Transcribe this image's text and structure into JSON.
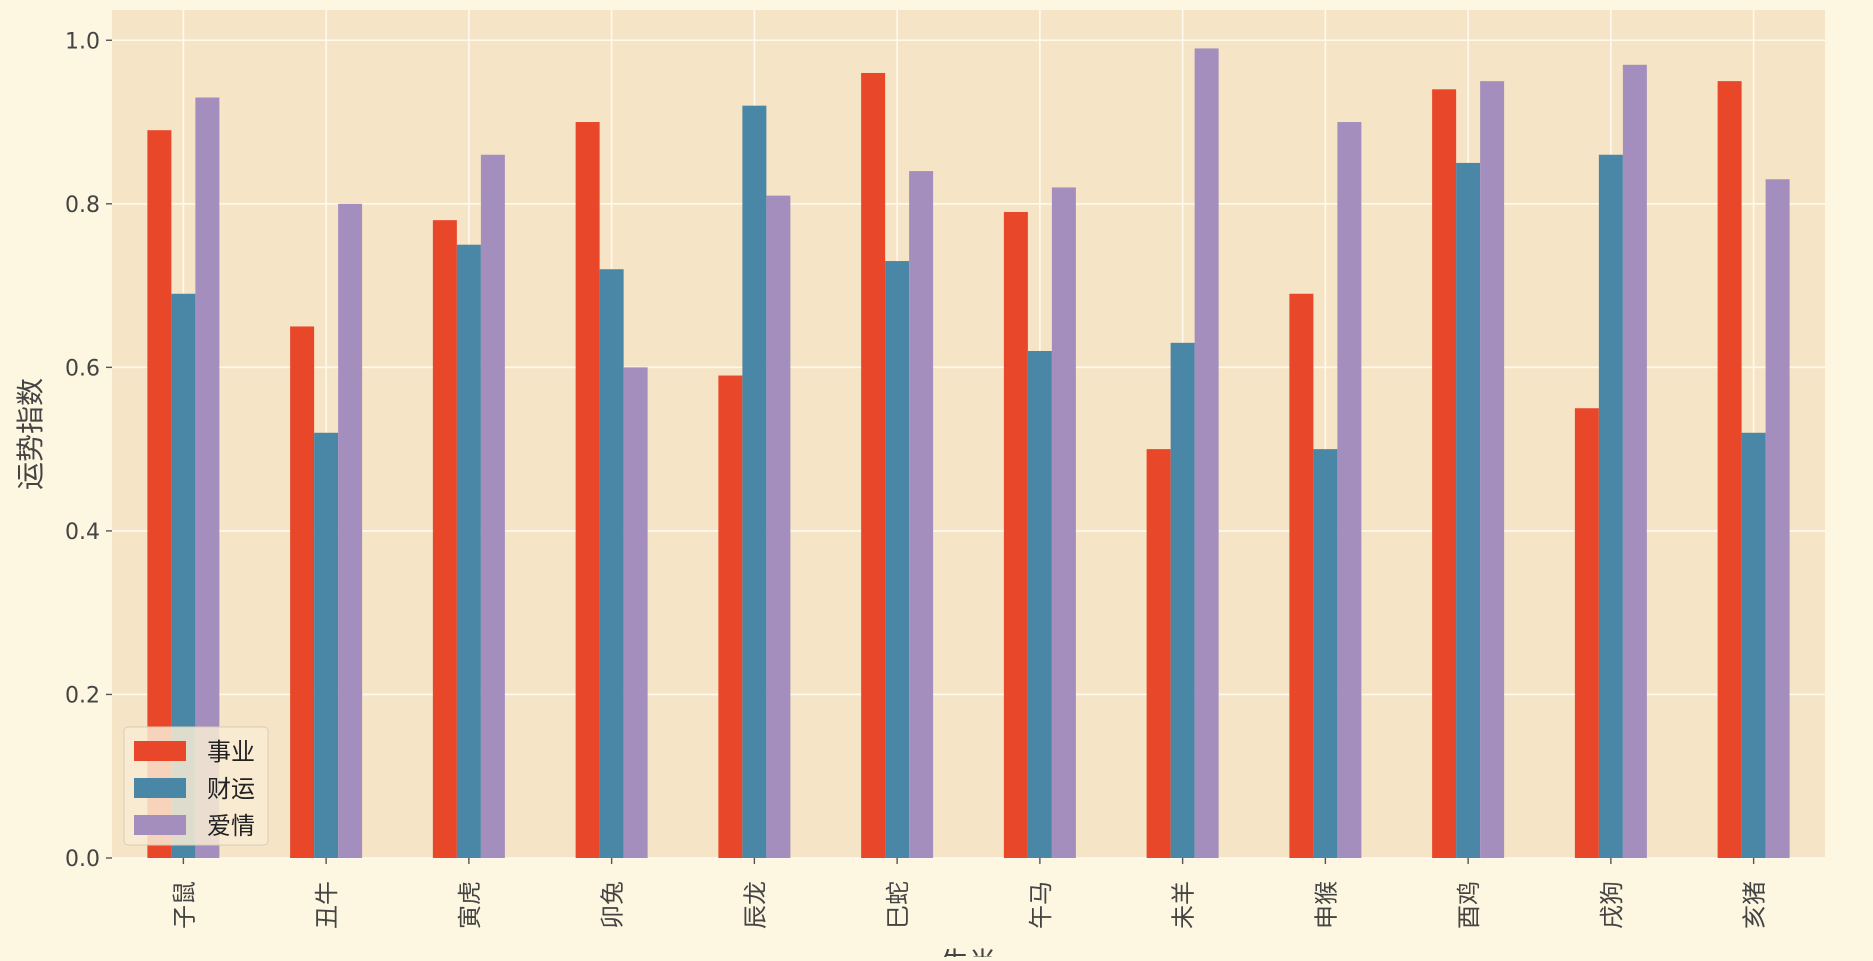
{
  "chart_data": {
    "type": "bar",
    "categories": [
      "子鼠",
      "丑牛",
      "寅虎",
      "卯兔",
      "辰龙",
      "巳蛇",
      "午马",
      "未羊",
      "申猴",
      "酉鸡",
      "戌狗",
      "亥猪"
    ],
    "series": [
      {
        "name": "事业",
        "color": "#e8472a",
        "values": [
          0.89,
          0.65,
          0.78,
          0.9,
          0.59,
          0.96,
          0.79,
          0.5,
          0.69,
          0.94,
          0.55,
          0.95
        ]
      },
      {
        "name": "财运",
        "color": "#4a87a6",
        "values": [
          0.69,
          0.52,
          0.75,
          0.72,
          0.92,
          0.73,
          0.62,
          0.63,
          0.5,
          0.85,
          0.86,
          0.52
        ]
      },
      {
        "name": "爱情",
        "color": "#a48ebd",
        "values": [
          0.93,
          0.8,
          0.86,
          0.6,
          0.81,
          0.84,
          0.82,
          0.99,
          0.9,
          0.95,
          0.97,
          0.83
        ]
      }
    ],
    "ylim": [
      0,
      1.0
    ],
    "yticks": [
      "0.0",
      "0.2",
      "0.4",
      "0.6",
      "0.8",
      "1.0"
    ],
    "ylabel": "运势指数",
    "xlabel": "生肖",
    "grid": true,
    "legend_position": "bottom-left",
    "colors": {
      "background": "#fdf6e0",
      "plot_area": "#f6e4c6",
      "grid": "#fffaf0",
      "text": "#444444"
    }
  }
}
